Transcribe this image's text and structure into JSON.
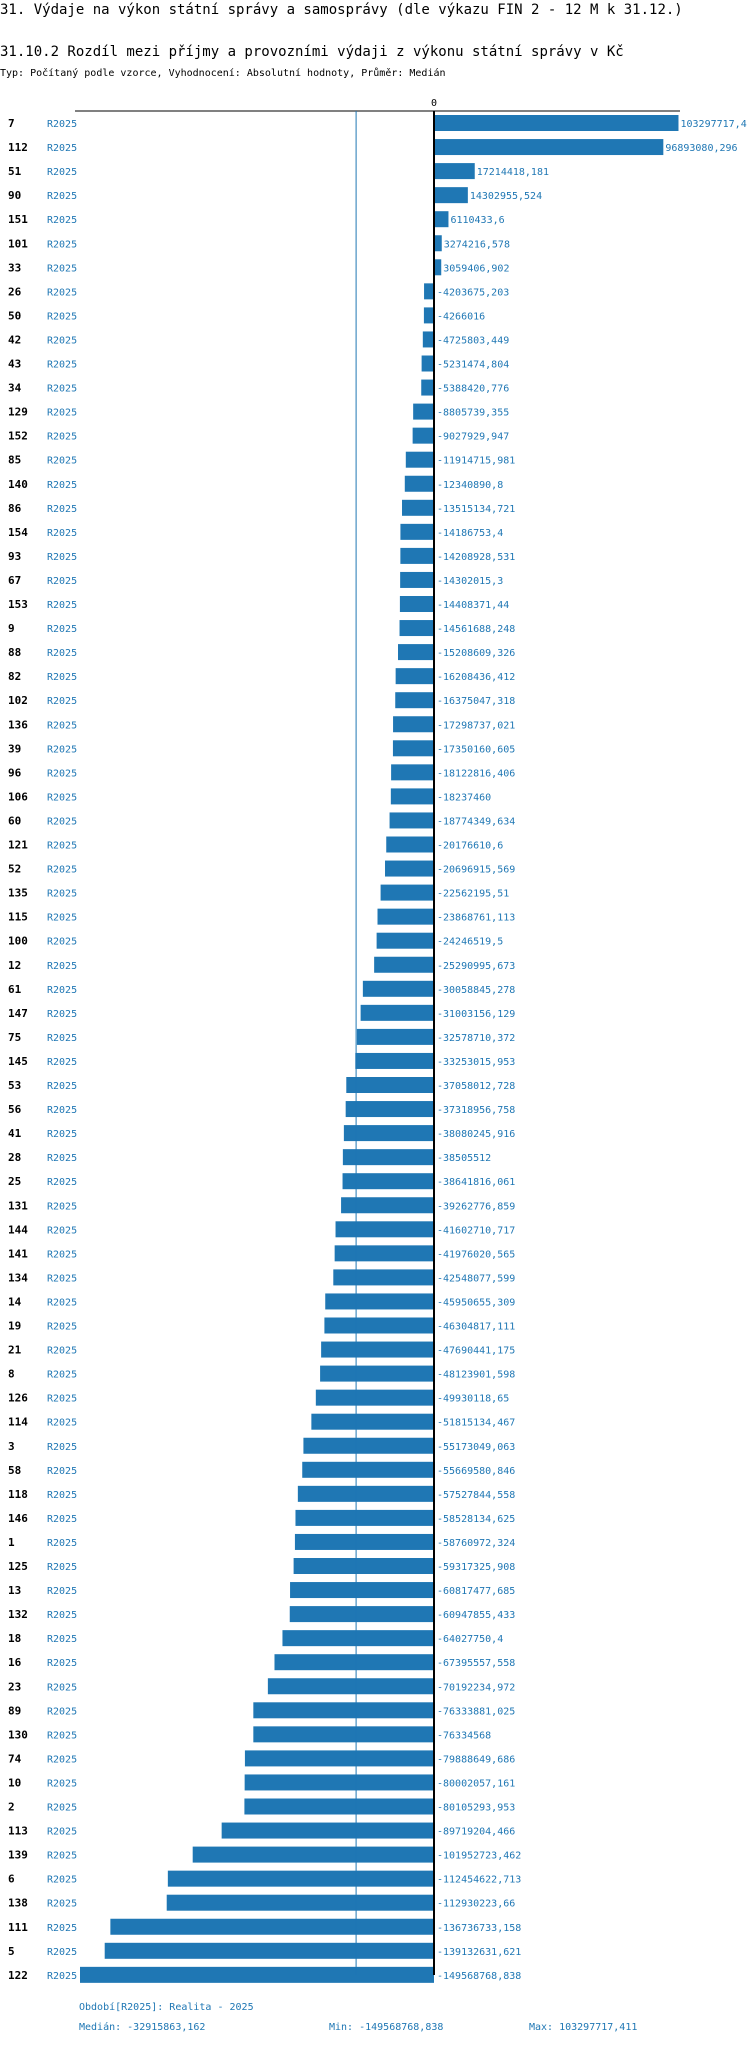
{
  "header": {
    "title": "31. Výdaje na výkon státní správy a samosprávy (dle výkazu FIN 2 - 12 M k 31.12.)",
    "chart_title": "31.10.2 Rozdíl mezi příjmy a provozními výdaji z výkonu státní správy v Kč",
    "subtitle": "Typ: Počítaný podle vzorce, Vyhodnocení: Absolutní hodnoty, Průměr: Medián"
  },
  "footer": {
    "period": "Období[R2025]: Realita - 2025",
    "median": "Medián: -32915863,162",
    "min": "Min: -149568768,838",
    "max": "Max: 103297717,411"
  },
  "chart_data": {
    "type": "bar",
    "orientation": "horizontal",
    "zero_label": "0",
    "median": -32915863.162,
    "min": -149568768.838,
    "max": 103297717.411,
    "period_label": "R2025",
    "bar_color": "#1f77b4",
    "rows": [
      {
        "id": "7",
        "period": "R2025",
        "value": 103297717.4,
        "label": "103297717,4"
      },
      {
        "id": "112",
        "period": "R2025",
        "value": 96893080.296,
        "label": "96893080,296"
      },
      {
        "id": "51",
        "period": "R2025",
        "value": 17214418.181,
        "label": "17214418,181"
      },
      {
        "id": "90",
        "period": "R2025",
        "value": 14302955.524,
        "label": "14302955,524"
      },
      {
        "id": "151",
        "period": "R2025",
        "value": 6110433.6,
        "label": "6110433,6"
      },
      {
        "id": "101",
        "period": "R2025",
        "value": 3274216.578,
        "label": "3274216,578"
      },
      {
        "id": "33",
        "period": "R2025",
        "value": 3059406.902,
        "label": "3059406,902"
      },
      {
        "id": "26",
        "period": "R2025",
        "value": -4203675.203,
        "label": "-4203675,203"
      },
      {
        "id": "50",
        "period": "R2025",
        "value": -4266016,
        "label": "-4266016"
      },
      {
        "id": "42",
        "period": "R2025",
        "value": -4725803.449,
        "label": "-4725803,449"
      },
      {
        "id": "43",
        "period": "R2025",
        "value": -5231474.804,
        "label": "-5231474,804"
      },
      {
        "id": "34",
        "period": "R2025",
        "value": -5388420.776,
        "label": "-5388420,776"
      },
      {
        "id": "129",
        "period": "R2025",
        "value": -8805739.355,
        "label": "-8805739,355"
      },
      {
        "id": "152",
        "period": "R2025",
        "value": -9027929.947,
        "label": "-9027929,947"
      },
      {
        "id": "85",
        "period": "R2025",
        "value": -11914715.981,
        "label": "-11914715,981"
      },
      {
        "id": "140",
        "period": "R2025",
        "value": -12340890.8,
        "label": "-12340890,8"
      },
      {
        "id": "86",
        "period": "R2025",
        "value": -13515134.721,
        "label": "-13515134,721"
      },
      {
        "id": "154",
        "period": "R2025",
        "value": -14186753.4,
        "label": "-14186753,4"
      },
      {
        "id": "93",
        "period": "R2025",
        "value": -14208928.531,
        "label": "-14208928,531"
      },
      {
        "id": "67",
        "period": "R2025",
        "value": -14302015.3,
        "label": "-14302015,3"
      },
      {
        "id": "153",
        "period": "R2025",
        "value": -14408371.44,
        "label": "-14408371,44"
      },
      {
        "id": "9",
        "period": "R2025",
        "value": -14561688.248,
        "label": "-14561688,248"
      },
      {
        "id": "88",
        "period": "R2025",
        "value": -15208609.326,
        "label": "-15208609,326"
      },
      {
        "id": "82",
        "period": "R2025",
        "value": -16208436.412,
        "label": "-16208436,412"
      },
      {
        "id": "102",
        "period": "R2025",
        "value": -16375047.318,
        "label": "-16375047,318"
      },
      {
        "id": "136",
        "period": "R2025",
        "value": -17298737.021,
        "label": "-17298737,021"
      },
      {
        "id": "39",
        "period": "R2025",
        "value": -17350160.605,
        "label": "-17350160,605"
      },
      {
        "id": "96",
        "period": "R2025",
        "value": -18122816.406,
        "label": "-18122816,406"
      },
      {
        "id": "106",
        "period": "R2025",
        "value": -18237460,
        "label": "-18237460"
      },
      {
        "id": "60",
        "period": "R2025",
        "value": -18774349.634,
        "label": "-18774349,634"
      },
      {
        "id": "121",
        "period": "R2025",
        "value": -20176610.6,
        "label": "-20176610,6"
      },
      {
        "id": "52",
        "period": "R2025",
        "value": -20696915.569,
        "label": "-20696915,569"
      },
      {
        "id": "135",
        "period": "R2025",
        "value": -22562195.51,
        "label": "-22562195,51"
      },
      {
        "id": "115",
        "period": "R2025",
        "value": -23868761.113,
        "label": "-23868761,113"
      },
      {
        "id": "100",
        "period": "R2025",
        "value": -24246519.5,
        "label": "-24246519,5"
      },
      {
        "id": "12",
        "period": "R2025",
        "value": -25290995.673,
        "label": "-25290995,673"
      },
      {
        "id": "61",
        "period": "R2025",
        "value": -30058845.278,
        "label": "-30058845,278"
      },
      {
        "id": "147",
        "period": "R2025",
        "value": -31003156.129,
        "label": "-31003156,129"
      },
      {
        "id": "75",
        "period": "R2025",
        "value": -32578710.372,
        "label": "-32578710,372"
      },
      {
        "id": "145",
        "period": "R2025",
        "value": -33253015.953,
        "label": "-33253015,953"
      },
      {
        "id": "53",
        "period": "R2025",
        "value": -37058012.728,
        "label": "-37058012,728"
      },
      {
        "id": "56",
        "period": "R2025",
        "value": -37318956.758,
        "label": "-37318956,758"
      },
      {
        "id": "41",
        "period": "R2025",
        "value": -38080245.916,
        "label": "-38080245,916"
      },
      {
        "id": "28",
        "period": "R2025",
        "value": -38505512,
        "label": "-38505512"
      },
      {
        "id": "25",
        "period": "R2025",
        "value": -38641816.061,
        "label": "-38641816,061"
      },
      {
        "id": "131",
        "period": "R2025",
        "value": -39262776.859,
        "label": "-39262776,859"
      },
      {
        "id": "144",
        "period": "R2025",
        "value": -41602710.717,
        "label": "-41602710,717"
      },
      {
        "id": "141",
        "period": "R2025",
        "value": -41976020.565,
        "label": "-41976020,565"
      },
      {
        "id": "134",
        "period": "R2025",
        "value": -42548077.599,
        "label": "-42548077,599"
      },
      {
        "id": "14",
        "period": "R2025",
        "value": -45950655.309,
        "label": "-45950655,309"
      },
      {
        "id": "19",
        "period": "R2025",
        "value": -46304817.111,
        "label": "-46304817,111"
      },
      {
        "id": "21",
        "period": "R2025",
        "value": -47690441.175,
        "label": "-47690441,175"
      },
      {
        "id": "8",
        "period": "R2025",
        "value": -48123901.598,
        "label": "-48123901,598"
      },
      {
        "id": "126",
        "period": "R2025",
        "value": -49930118.65,
        "label": "-49930118,65"
      },
      {
        "id": "114",
        "period": "R2025",
        "value": -51815134.467,
        "label": "-51815134,467"
      },
      {
        "id": "3",
        "period": "R2025",
        "value": -55173049.063,
        "label": "-55173049,063"
      },
      {
        "id": "58",
        "period": "R2025",
        "value": -55669580.846,
        "label": "-55669580,846"
      },
      {
        "id": "118",
        "period": "R2025",
        "value": -57527844.558,
        "label": "-57527844,558"
      },
      {
        "id": "146",
        "period": "R2025",
        "value": -58528134.625,
        "label": "-58528134,625"
      },
      {
        "id": "1",
        "period": "R2025",
        "value": -58760972.324,
        "label": "-58760972,324"
      },
      {
        "id": "125",
        "period": "R2025",
        "value": -59317325.908,
        "label": "-59317325,908"
      },
      {
        "id": "13",
        "period": "R2025",
        "value": -60817477.685,
        "label": "-60817477,685"
      },
      {
        "id": "132",
        "period": "R2025",
        "value": -60947855.433,
        "label": "-60947855,433"
      },
      {
        "id": "18",
        "period": "R2025",
        "value": -64027750.4,
        "label": "-64027750,4"
      },
      {
        "id": "16",
        "period": "R2025",
        "value": -67395557.558,
        "label": "-67395557,558"
      },
      {
        "id": "23",
        "period": "R2025",
        "value": -70192234.972,
        "label": "-70192234,972"
      },
      {
        "id": "89",
        "period": "R2025",
        "value": -76333881.025,
        "label": "-76333881,025"
      },
      {
        "id": "130",
        "period": "R2025",
        "value": -76334568,
        "label": "-76334568"
      },
      {
        "id": "74",
        "period": "R2025",
        "value": -79888649.686,
        "label": "-79888649,686"
      },
      {
        "id": "10",
        "period": "R2025",
        "value": -80002057.161,
        "label": "-80002057,161"
      },
      {
        "id": "2",
        "period": "R2025",
        "value": -80105293.953,
        "label": "-80105293,953"
      },
      {
        "id": "113",
        "period": "R2025",
        "value": -89719204.466,
        "label": "-89719204,466"
      },
      {
        "id": "139",
        "period": "R2025",
        "value": -101952723.462,
        "label": "-101952723,462"
      },
      {
        "id": "6",
        "period": "R2025",
        "value": -112454622.713,
        "label": "-112454622,713"
      },
      {
        "id": "138",
        "period": "R2025",
        "value": -112930223.66,
        "label": "-112930223,66"
      },
      {
        "id": "111",
        "period": "R2025",
        "value": -136736733.158,
        "label": "-136736733,158"
      },
      {
        "id": "5",
        "period": "R2025",
        "value": -139132631.621,
        "label": "-139132631,621"
      },
      {
        "id": "122",
        "period": "R2025",
        "value": -149568768.838,
        "label": "-149568768,838"
      }
    ]
  }
}
